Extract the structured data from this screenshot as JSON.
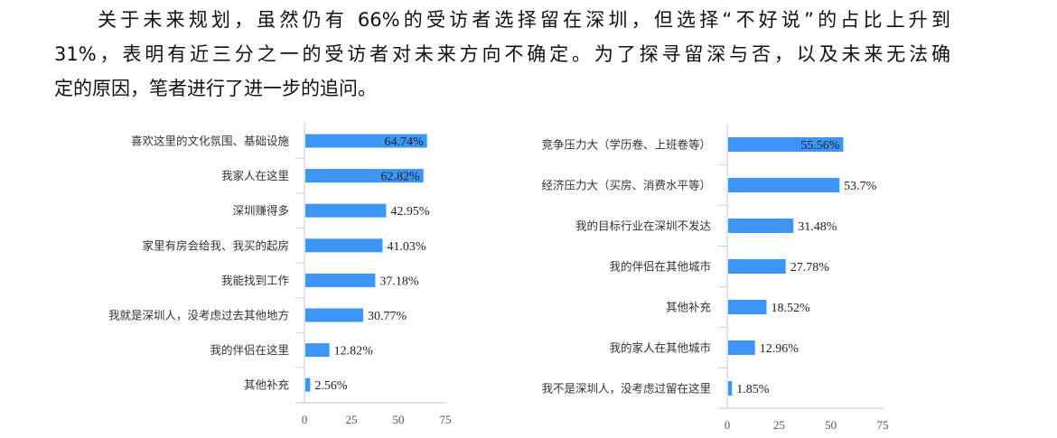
{
  "paragraph": {
    "lines": [
      "关于未来规划，虽然仍有 66%的受访者选择留在深圳，但选择“不好说”的占比上升到",
      "31%，表明有近三分之一的受访者对未来方向不确定。为了探寻留深与否，以及未来无法确",
      "定的原因，笔者进行了进一步的追问。"
    ]
  },
  "chart_data": [
    {
      "type": "bar",
      "orientation": "horizontal",
      "categories": [
        "喜欢这里的文化氛围、基础设施",
        "我家人在这里",
        "深圳赚得多",
        "家里有房会给我、我买的起房",
        "我能找到工作",
        "我就是深圳人，没考虑过去其他地方",
        "我的伴侣在这里",
        "其他补充"
      ],
      "values": [
        64.74,
        62.82,
        42.95,
        41.03,
        37.18,
        30.77,
        12.82,
        2.56
      ],
      "data_labels": [
        "64.74%",
        "62.82%",
        "42.95%",
        "41.03%",
        "37.18%",
        "30.77%",
        "12.82%",
        "2.56%"
      ],
      "xlim": [
        0,
        75
      ],
      "xticks": [
        "0",
        "25",
        "50",
        "75"
      ],
      "grid": false,
      "bar_color": "#3d95f5"
    },
    {
      "type": "bar",
      "orientation": "horizontal",
      "categories": [
        "竞争压力大（学历卷、上班卷等）",
        "经济压力大（买房、消费水平等）",
        "我的目标行业在深圳不发达",
        "我的伴侣在其他城市",
        "其他补充",
        "我的家人在其他城市",
        "我不是深圳人，没考虑过留在这里"
      ],
      "values": [
        55.56,
        53.7,
        31.48,
        27.78,
        18.52,
        12.96,
        1.85
      ],
      "data_labels": [
        "55.56%",
        "53.7%",
        "31.48%",
        "27.78%",
        "18.52%",
        "12.96%",
        "1.85%"
      ],
      "xlim": [
        0,
        75
      ],
      "xticks": [
        "0",
        "25",
        "50",
        "75"
      ],
      "grid": false,
      "bar_color": "#3d95f5"
    }
  ]
}
